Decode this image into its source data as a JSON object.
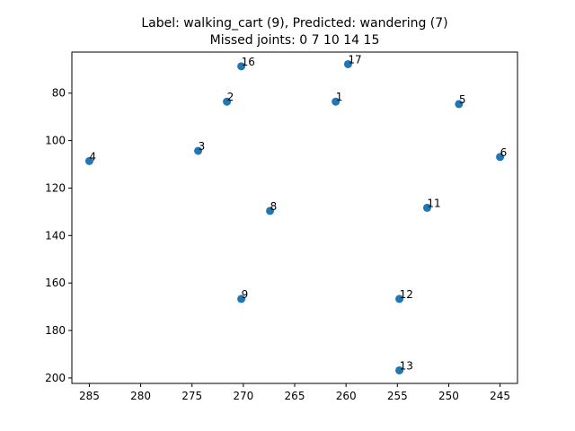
{
  "chart_data": {
    "type": "scatter",
    "title_lines": [
      "Label: walking_cart (9), Predicted: wandering (7)",
      "Missed joints: 0 7 10 14 15"
    ],
    "xlabel": "",
    "ylabel": "",
    "xlim": [
      286.7,
      243.3
    ],
    "ylim": [
      202.3,
      62.7
    ],
    "x_ticks": [
      285,
      280,
      275,
      270,
      265,
      260,
      255,
      250,
      245
    ],
    "y_ticks": [
      80,
      100,
      120,
      140,
      160,
      180,
      200
    ],
    "x_inverted": true,
    "y_inverted": true,
    "grid": false,
    "marker_color": "#1f77b4",
    "points": [
      {
        "label": "1",
        "x": 261.0,
        "y": 83.6
      },
      {
        "label": "2",
        "x": 271.6,
        "y": 83.6
      },
      {
        "label": "3",
        "x": 274.4,
        "y": 104.3
      },
      {
        "label": "4",
        "x": 285.0,
        "y": 108.6
      },
      {
        "label": "5",
        "x": 249.0,
        "y": 84.6
      },
      {
        "label": "6",
        "x": 245.0,
        "y": 106.9
      },
      {
        "label": "8",
        "x": 267.4,
        "y": 129.6
      },
      {
        "label": "9",
        "x": 270.2,
        "y": 166.7
      },
      {
        "label": "11",
        "x": 252.1,
        "y": 128.3
      },
      {
        "label": "12",
        "x": 254.8,
        "y": 166.7
      },
      {
        "label": "13",
        "x": 254.8,
        "y": 196.8
      },
      {
        "label": "16",
        "x": 270.2,
        "y": 68.7
      },
      {
        "label": "17",
        "x": 259.8,
        "y": 67.8
      }
    ]
  }
}
